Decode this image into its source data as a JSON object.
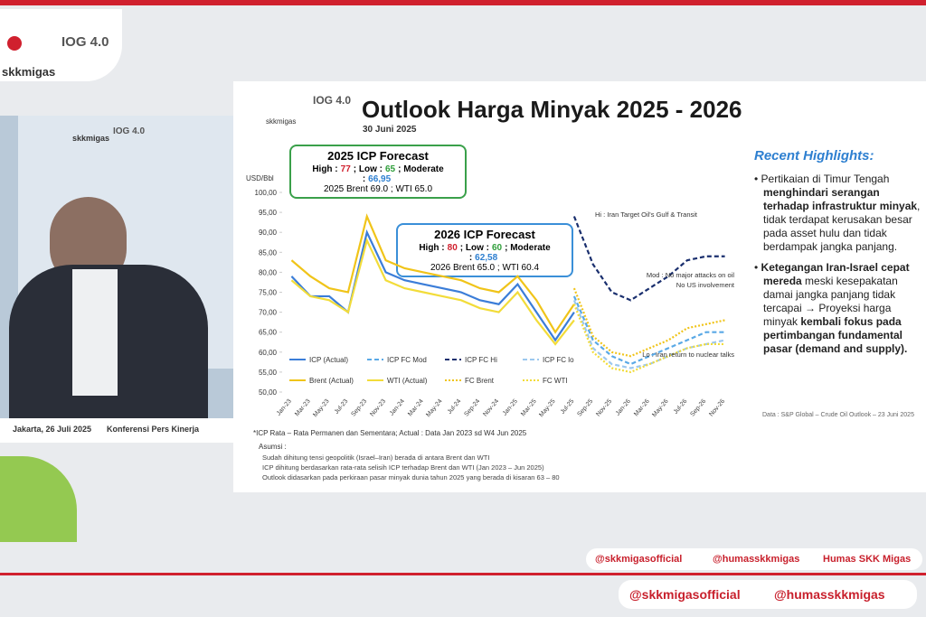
{
  "header": {
    "logo": "skkmigas",
    "event_logo": "IOG 4.0"
  },
  "video": {
    "logo": "skkmigas",
    "event_logo": "IOG 4.0",
    "caption_date": "Jakarta, 26 Juli 2025",
    "caption_event": "Konferensi Pers Kinerja"
  },
  "slide": {
    "logo": "skkmigas",
    "event_logo": "IOG 4.0",
    "title": "Outlook Harga Minyak 2025 - 2026",
    "date": "30 Juni 2025",
    "box_2025": {
      "title": "2025 ICP Forecast",
      "parts": [
        "High :",
        "77",
        "; Low :",
        "65",
        "; Moderate :",
        "66,95"
      ],
      "line2": "2025 Brent 69.0 ; WTI 65.0"
    },
    "box_2026": {
      "title": "2026 ICP Forecast",
      "parts": [
        "High :",
        "80",
        "; Low :",
        "60",
        "; Moderate :",
        "62,58"
      ],
      "line2": "2026 Brent 65.0 ; WTI 60.4"
    },
    "footnote": "*ICP Rata – Rata Permanen dan Sementara; Actual : Data Jan 2023 sd W4 Jun 2025",
    "assumptions_title": "Asumsi :",
    "assumptions": [
      "Sudah dihitung tensi geopolitik (Israel–Iran) berada di antara Brent dan WTI",
      "ICP dihitung berdasarkan rata-rata selisih ICP terhadap Brent dan WTI (Jan 2023 – Jun 2025)",
      "Outlook didasarkan pada perkiraan pasar minyak dunia tahun 2025 yang berada di kisaran 63 – 80"
    ],
    "highlights_title": "Recent Highlights:",
    "highlights": [
      [
        "Pertikaian di Timur Tengah",
        "menghindari serangan terhadap infrastruktur minyak",
        ", tidak terdapat kerusakan besar pada asset hulu dan tidak berdampak jangka panjang."
      ],
      [
        "Ketegangan Iran-Israel cepat mereda",
        "meski kesepakatan damai jangka panjang tidak tercapai → Proyeksi harga minyak",
        "kembali fokus pada pertimbangan fundamental pasar (demand and supply)."
      ]
    ],
    "source": "Data : S&P Global – Crude Oil Outlook – 23 Juni 2025"
  },
  "footer": {
    "small": [
      "@skkmigasofficial",
      "@humasskkmigas",
      "Humas SKK Migas"
    ],
    "large": [
      "@skkmigasofficial",
      "@humasskkmigas"
    ]
  },
  "chart_data": {
    "type": "line",
    "y_label": "USD/Bbl",
    "categories": [
      "Jan-23",
      "Mar-23",
      "May-23",
      "Jul-23",
      "Sep-23",
      "Nov-23",
      "Jan-24",
      "Mar-24",
      "May-24",
      "Jul-24",
      "Sep-24",
      "Nov-24",
      "Jan-25",
      "Mar-25",
      "May-25",
      "Jul-25",
      "Sep-25",
      "Nov-25",
      "Jan-26",
      "Mar-26",
      "May-26",
      "Jul-26",
      "Sep-26",
      "Nov-26"
    ],
    "ylim": [
      50,
      100
    ],
    "yticks": [
      {
        "value": 50,
        "label": "50,00"
      },
      {
        "value": 55,
        "label": "55,00"
      },
      {
        "value": 60,
        "label": "60,00"
      },
      {
        "value": 65,
        "label": "65,00"
      },
      {
        "value": 70,
        "label": "70,00"
      },
      {
        "value": 75,
        "label": "75,00"
      },
      {
        "value": 80,
        "label": "80,00"
      },
      {
        "value": 85,
        "label": "85,00"
      },
      {
        "value": 90,
        "label": "90,00"
      },
      {
        "value": 95,
        "label": "95,00"
      },
      {
        "value": 100,
        "label": "100,00"
      }
    ],
    "annotations": [
      "Hi : Iran Target Oil's Gulf & Transit",
      "Mod : No major attacks on oil",
      "No US involvement",
      "Lo : Iran return to nuclear talks"
    ],
    "series": [
      {
        "name": "ICP (Actual)",
        "color": "#3b7dd8",
        "style": "solid",
        "values": [
          79,
          74,
          74,
          70,
          90,
          80,
          78,
          77,
          76,
          75,
          73,
          72,
          77,
          70,
          63,
          70,
          null,
          null,
          null,
          null,
          null,
          null,
          null,
          null
        ]
      },
      {
        "name": "ICP FC Mod",
        "color": "#5aa9e6",
        "style": "dashed",
        "values": [
          null,
          null,
          null,
          null,
          null,
          null,
          null,
          null,
          null,
          null,
          null,
          null,
          null,
          null,
          null,
          74,
          63,
          59,
          57,
          59,
          61,
          63,
          65,
          65
        ]
      },
      {
        "name": "ICP FC Hi",
        "color": "#1a2f6e",
        "style": "dashed",
        "values": [
          null,
          null,
          null,
          null,
          null,
          null,
          null,
          null,
          null,
          null,
          null,
          null,
          null,
          null,
          null,
          94,
          82,
          75,
          73,
          76,
          79,
          83,
          84,
          84
        ]
      },
      {
        "name": "ICP FC lo",
        "color": "#9cc8ee",
        "style": "dashed",
        "values": [
          null,
          null,
          null,
          null,
          null,
          null,
          null,
          null,
          null,
          null,
          null,
          null,
          null,
          null,
          null,
          73,
          61,
          57,
          56,
          57,
          59,
          61,
          62,
          63
        ]
      },
      {
        "name": "Brent (Actual)",
        "color": "#f0c419",
        "style": "solid",
        "values": [
          83,
          79,
          76,
          75,
          94,
          83,
          81,
          80,
          79,
          78,
          76,
          75,
          79,
          73,
          65,
          72,
          null,
          null,
          null,
          null,
          null,
          null,
          null,
          null
        ]
      },
      {
        "name": "WTI (Actual)",
        "color": "#f2dc3a",
        "style": "solid",
        "values": [
          78,
          74,
          73,
          70,
          88,
          78,
          76,
          75,
          74,
          73,
          71,
          70,
          75,
          68,
          62,
          68,
          null,
          null,
          null,
          null,
          null,
          null,
          null,
          null
        ]
      },
      {
        "name": "FC Brent",
        "color": "#f0c419",
        "style": "dotted",
        "values": [
          null,
          null,
          null,
          null,
          null,
          null,
          null,
          null,
          null,
          null,
          null,
          null,
          null,
          null,
          null,
          76,
          64,
          60,
          59,
          61,
          63,
          66,
          67,
          68
        ]
      },
      {
        "name": "FC WTI",
        "color": "#f2dc3a",
        "style": "dotted",
        "values": [
          null,
          null,
          null,
          null,
          null,
          null,
          null,
          null,
          null,
          null,
          null,
          null,
          null,
          null,
          null,
          72,
          60,
          56,
          55,
          57,
          59,
          61,
          62,
          62
        ]
      }
    ]
  }
}
